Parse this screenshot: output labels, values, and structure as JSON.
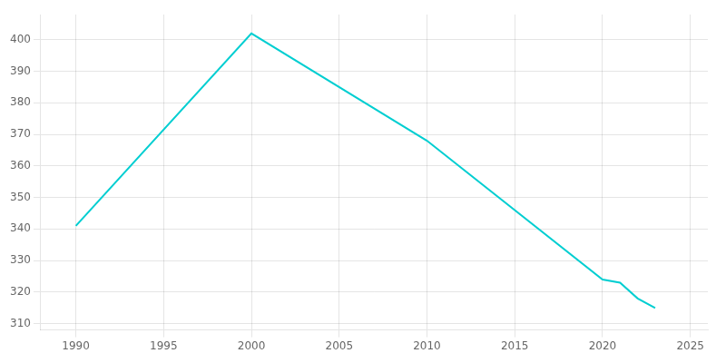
{
  "chart_data": {
    "type": "line",
    "x": [
      1990,
      2000,
      2010,
      2020,
      2021,
      2022,
      2023
    ],
    "values": [
      341,
      402,
      368,
      324,
      323,
      318,
      315
    ],
    "color": "#00CED1",
    "xlim": [
      1988,
      2026
    ],
    "ylim": [
      308,
      408
    ],
    "xticks": [
      1990,
      1995,
      2000,
      2005,
      2010,
      2015,
      2020,
      2025
    ],
    "yticks": [
      310,
      320,
      330,
      340,
      350,
      360,
      370,
      380,
      390,
      400
    ],
    "grid": true
  }
}
